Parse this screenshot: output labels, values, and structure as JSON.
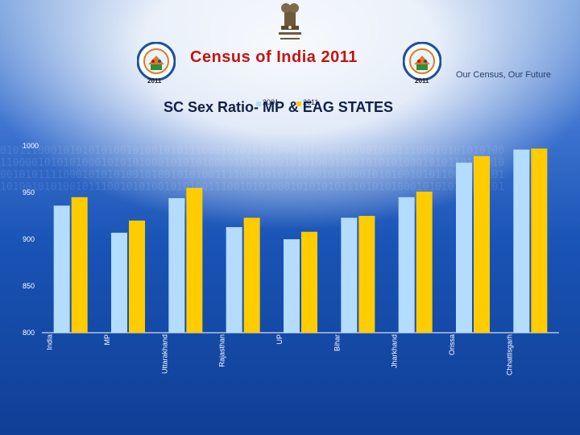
{
  "header": {
    "title": "Census of India  2011",
    "tagline": "Our Census,  Our Future",
    "logo_year_left": "2011",
    "logo_year_right": "2011",
    "emblem_icon": "national-emblem-icon",
    "census_logo_icon": "census-logo-icon"
  },
  "colors": {
    "series_2001": "#b3dcff",
    "series_2011": "#ffcc00",
    "title": "#c41212"
  },
  "chart_data": {
    "type": "bar",
    "title": "SC Sex Ratio- MP & EAG STATES",
    "categories": [
      "India",
      "MP",
      "Uttarakhand",
      "Rajasthan",
      "UP",
      "Bihar",
      "Jharkhand",
      "Orissa",
      "Chhattisgarh"
    ],
    "series": [
      {
        "name": "2001",
        "values": [
          936,
          907,
          944,
          913,
          900,
          923,
          945,
          982,
          996
        ]
      },
      {
        "name": "2011",
        "values": [
          945,
          920,
          955,
          923,
          908,
          925,
          951,
          989,
          997
        ]
      }
    ],
    "yticks": [
      "800",
      "850",
      "900",
      "950",
      "1000"
    ],
    "ylim": [
      800,
      1000
    ],
    "grid": false,
    "legend_position": "top-center"
  }
}
